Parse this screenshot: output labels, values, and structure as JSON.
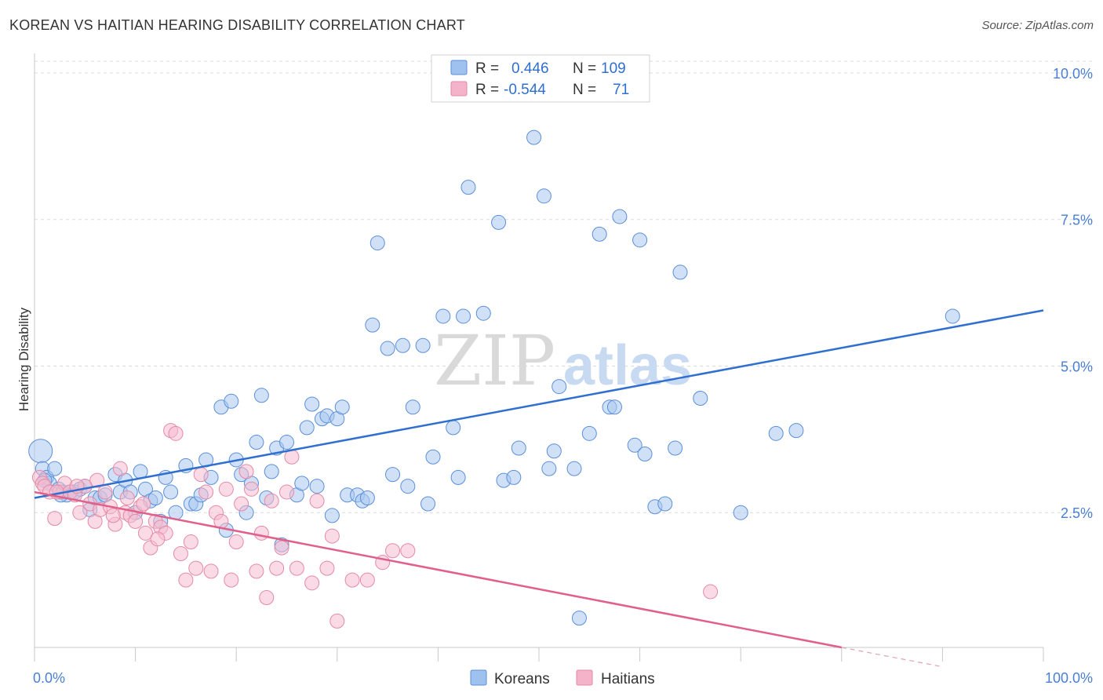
{
  "title": "KOREAN VS HAITIAN HEARING DISABILITY CORRELATION CHART",
  "source": "Source: ZipAtlas.com",
  "watermark": {
    "zip": "ZIP",
    "atlas": "atlas"
  },
  "legend": {
    "rows": [
      {
        "r_label": "R =",
        "r_value": "0.446",
        "n_label": "N =",
        "n_value": "109",
        "color": "#9ec1ee"
      },
      {
        "r_label": "R =",
        "r_value": "-0.544",
        "n_label": "N =",
        "n_value": "71",
        "color": "#f4b3c8"
      }
    ]
  },
  "bottom_legend": [
    {
      "label": "Koreans",
      "color": "#9ec1ee"
    },
    {
      "label": "Haitians",
      "color": "#f4b3c8"
    }
  ],
  "chart_data": {
    "type": "scatter",
    "title": "KOREAN VS HAITIAN HEARING DISABILITY CORRELATION CHART",
    "xlabel": "",
    "ylabel": "Hearing Disability",
    "xlim": [
      0,
      100
    ],
    "ylim": [
      0.2,
      10.2
    ],
    "x_tick_labels": [
      "0.0%",
      "100.0%"
    ],
    "y_ticks": [
      2.5,
      5.0,
      7.5,
      10.0
    ],
    "y_tick_labels": [
      "2.5%",
      "5.0%",
      "7.5%",
      "10.0%"
    ],
    "grid": true,
    "legend_position": "top-center",
    "series": [
      {
        "name": "Koreans",
        "color": "#5b8fd8",
        "fill": "#a9c8f0",
        "trend": {
          "x0": 0,
          "y0": 2.75,
          "x1": 100,
          "y1": 5.95
        },
        "points": [
          [
            0.6,
            3.55
          ],
          [
            0.8,
            3.25
          ],
          [
            1.2,
            3.1
          ],
          [
            1.5,
            3.0
          ],
          [
            2.0,
            3.25
          ],
          [
            2.4,
            2.9
          ],
          [
            2.8,
            2.85
          ],
          [
            3.2,
            2.8
          ],
          [
            3.6,
            2.85
          ],
          [
            4.0,
            2.85
          ],
          [
            4.5,
            2.9
          ],
          [
            5.0,
            2.95
          ],
          [
            5.5,
            2.55
          ],
          [
            6.0,
            2.75
          ],
          [
            6.5,
            2.75
          ],
          [
            7.0,
            2.8
          ],
          [
            8.0,
            3.15
          ],
          [
            8.5,
            2.85
          ],
          [
            9.0,
            3.05
          ],
          [
            9.5,
            2.85
          ],
          [
            10.0,
            2.5
          ],
          [
            10.5,
            3.2
          ],
          [
            11.0,
            2.9
          ],
          [
            11.5,
            2.7
          ],
          [
            12.0,
            2.75
          ],
          [
            12.5,
            2.35
          ],
          [
            13.0,
            3.1
          ],
          [
            13.5,
            2.85
          ],
          [
            14.0,
            2.5
          ],
          [
            15.0,
            3.3
          ],
          [
            15.5,
            2.65
          ],
          [
            16.0,
            2.65
          ],
          [
            16.5,
            2.8
          ],
          [
            17.0,
            3.4
          ],
          [
            17.5,
            3.1
          ],
          [
            18.5,
            4.3
          ],
          [
            19.0,
            2.2
          ],
          [
            19.5,
            4.4
          ],
          [
            20.0,
            3.4
          ],
          [
            20.5,
            3.15
          ],
          [
            21.0,
            2.5
          ],
          [
            21.5,
            3.0
          ],
          [
            22.0,
            3.7
          ],
          [
            22.5,
            4.5
          ],
          [
            23.0,
            2.75
          ],
          [
            23.5,
            3.2
          ],
          [
            24.0,
            3.6
          ],
          [
            24.5,
            1.95
          ],
          [
            25.0,
            3.7
          ],
          [
            26.0,
            2.8
          ],
          [
            26.5,
            3.0
          ],
          [
            27.0,
            3.95
          ],
          [
            27.5,
            4.35
          ],
          [
            28.0,
            2.95
          ],
          [
            28.5,
            4.1
          ],
          [
            29.0,
            4.15
          ],
          [
            29.5,
            2.45
          ],
          [
            30.0,
            4.1
          ],
          [
            30.5,
            4.3
          ],
          [
            31.0,
            2.8
          ],
          [
            32.0,
            2.8
          ],
          [
            32.5,
            2.7
          ],
          [
            33.0,
            2.75
          ],
          [
            33.5,
            5.7
          ],
          [
            34.0,
            7.1
          ],
          [
            35.0,
            5.3
          ],
          [
            35.5,
            3.15
          ],
          [
            36.5,
            5.35
          ],
          [
            37.0,
            2.95
          ],
          [
            37.5,
            4.3
          ],
          [
            38.5,
            5.35
          ],
          [
            39.0,
            2.65
          ],
          [
            39.5,
            3.45
          ],
          [
            40.5,
            5.85
          ],
          [
            41.5,
            3.95
          ],
          [
            42.0,
            3.1
          ],
          [
            42.5,
            5.85
          ],
          [
            43.0,
            8.05
          ],
          [
            44.5,
            5.9
          ],
          [
            46.0,
            7.45
          ],
          [
            46.5,
            3.05
          ],
          [
            47.5,
            3.1
          ],
          [
            48.0,
            3.6
          ],
          [
            49.5,
            8.9
          ],
          [
            50.5,
            7.9
          ],
          [
            51.0,
            3.25
          ],
          [
            51.5,
            3.55
          ],
          [
            52.0,
            4.65
          ],
          [
            53.5,
            3.25
          ],
          [
            54.0,
            0.7
          ],
          [
            55.0,
            3.85
          ],
          [
            56.0,
            7.25
          ],
          [
            57.0,
            4.3
          ],
          [
            57.5,
            4.3
          ],
          [
            58.0,
            7.55
          ],
          [
            59.5,
            3.65
          ],
          [
            60.0,
            7.15
          ],
          [
            60.5,
            3.5
          ],
          [
            61.5,
            2.6
          ],
          [
            62.5,
            2.65
          ],
          [
            63.5,
            3.6
          ],
          [
            64.0,
            6.6
          ],
          [
            66.0,
            4.45
          ],
          [
            70.0,
            2.5
          ],
          [
            73.5,
            3.85
          ],
          [
            75.5,
            3.9
          ],
          [
            91.0,
            5.85
          ],
          [
            1.0,
            3.05
          ],
          [
            2.6,
            2.8
          ]
        ]
      },
      {
        "name": "Haitians",
        "color": "#e48aa6",
        "fill": "#f6bccf",
        "trend": {
          "x0": 0,
          "y0": 2.85,
          "x1": 80,
          "y1": 0.2
        },
        "trend_dashed": {
          "x0": 80,
          "y0": 0.2,
          "x1": 90,
          "y1": -0.13
        },
        "points": [
          [
            0.5,
            3.1
          ],
          [
            0.8,
            3.0
          ],
          [
            1.0,
            2.95
          ],
          [
            1.5,
            2.85
          ],
          [
            2.0,
            2.4
          ],
          [
            2.5,
            2.85
          ],
          [
            3.0,
            3.0
          ],
          [
            3.5,
            2.85
          ],
          [
            4.0,
            2.8
          ],
          [
            4.5,
            2.5
          ],
          [
            5.0,
            2.95
          ],
          [
            5.5,
            2.65
          ],
          [
            6.0,
            2.35
          ],
          [
            6.5,
            2.55
          ],
          [
            7.0,
            2.85
          ],
          [
            7.5,
            2.6
          ],
          [
            8.0,
            2.3
          ],
          [
            8.5,
            3.25
          ],
          [
            9.0,
            2.5
          ],
          [
            9.5,
            2.45
          ],
          [
            10.0,
            2.35
          ],
          [
            10.5,
            2.6
          ],
          [
            11.0,
            2.15
          ],
          [
            11.5,
            1.9
          ],
          [
            12.0,
            2.35
          ],
          [
            12.5,
            2.25
          ],
          [
            13.0,
            2.15
          ],
          [
            13.5,
            3.9
          ],
          [
            14.0,
            3.85
          ],
          [
            14.5,
            1.8
          ],
          [
            15.0,
            1.35
          ],
          [
            15.5,
            2.0
          ],
          [
            16.0,
            1.55
          ],
          [
            16.5,
            3.15
          ],
          [
            17.0,
            2.85
          ],
          [
            17.5,
            1.5
          ],
          [
            18.0,
            2.5
          ],
          [
            18.5,
            2.35
          ],
          [
            19.0,
            2.9
          ],
          [
            19.5,
            1.35
          ],
          [
            20.0,
            2.0
          ],
          [
            20.5,
            2.65
          ],
          [
            21.0,
            3.2
          ],
          [
            21.5,
            2.9
          ],
          [
            22.0,
            1.5
          ],
          [
            22.5,
            2.15
          ],
          [
            23.0,
            1.05
          ],
          [
            23.5,
            2.7
          ],
          [
            24.0,
            1.55
          ],
          [
            24.5,
            1.9
          ],
          [
            25.0,
            2.85
          ],
          [
            25.5,
            3.45
          ],
          [
            26.0,
            1.55
          ],
          [
            27.5,
            1.3
          ],
          [
            28.0,
            2.7
          ],
          [
            29.0,
            1.55
          ],
          [
            29.5,
            2.1
          ],
          [
            30.0,
            0.65
          ],
          [
            31.5,
            1.35
          ],
          [
            33.0,
            1.35
          ],
          [
            34.5,
            1.65
          ],
          [
            35.5,
            1.85
          ],
          [
            37.0,
            1.85
          ],
          [
            6.2,
            3.05
          ],
          [
            9.2,
            2.75
          ],
          [
            12.2,
            2.05
          ],
          [
            4.2,
            2.95
          ],
          [
            7.8,
            2.45
          ],
          [
            2.2,
            2.85
          ],
          [
            10.8,
            2.65
          ],
          [
            67.0,
            1.15
          ]
        ]
      }
    ]
  }
}
